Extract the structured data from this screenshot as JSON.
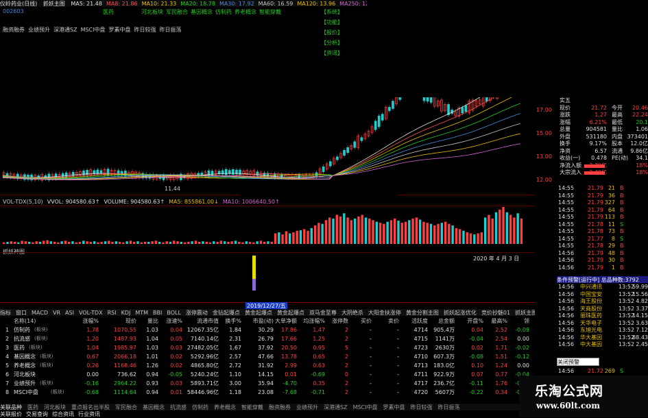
{
  "titlebar": {
    "stock": "仪岭药业(日线)",
    "indicator": "抓妖主图",
    "ma_values": [
      {
        "label": "MA5: 21.48",
        "color": "#e0e0e0"
      },
      {
        "label": "MA8: 21.86",
        "color": "#ff5050"
      },
      {
        "label": "MA10: 21.33",
        "color": "#e8c000"
      },
      {
        "label": "MA20: 18.78",
        "color": "#22cc22"
      },
      {
        "label": "MA30: 17.92",
        "color": "#4a8cdc"
      },
      {
        "label": "MA60: 16.59",
        "color": "#c8c8c8"
      },
      {
        "label": "MA120: 13.96",
        "color": "#e8c000"
      },
      {
        "label": "MA250: 12.77",
        "color": "#cc66cc"
      }
    ],
    "header_tags": [
      "医药",
      "河北板块",
      "军民融合",
      "基因概念",
      "仿制药",
      "养老概念",
      "智能穿戴"
    ]
  },
  "code": "002603",
  "concept_tags": [
    "融资融券",
    "业绩预升",
    "深港通SZ",
    "MSCI中盘",
    "罗素中盘",
    "昨日较强",
    "昨日振荡"
  ],
  "menu_boxes": [
    "【系统】",
    "【功能】",
    "【报价】",
    "【分析】",
    "【资讯】"
  ],
  "volume": {
    "header": [
      "VOL-TDX(5,10)",
      "VVOL: 904580.63↑",
      "VOLUME: 904580.63↑",
      "MA5: 855861.00↓",
      "MA10: 1006640.50↑"
    ],
    "bars": [
      3,
      4,
      5,
      4,
      3,
      6,
      5,
      4,
      3,
      5,
      4,
      6,
      7,
      5,
      4,
      3,
      5,
      6,
      4,
      5,
      3,
      4,
      6,
      5,
      4,
      5,
      3,
      4,
      5,
      6,
      4,
      5,
      4,
      3,
      5,
      6,
      4,
      5,
      3,
      4,
      4,
      5,
      6,
      4,
      3,
      5,
      4,
      6,
      5,
      4,
      3,
      4,
      5,
      6,
      4,
      5,
      4,
      3,
      5,
      4,
      6,
      5,
      4,
      5,
      6,
      4,
      3,
      5,
      4,
      3,
      5,
      6,
      4,
      5,
      4,
      20,
      22,
      18,
      24,
      20,
      22,
      25,
      26,
      28,
      25,
      30,
      35,
      40,
      38,
      45,
      50,
      48,
      55,
      52,
      58,
      50,
      45,
      48,
      52,
      55,
      50,
      48,
      45,
      42,
      40,
      38,
      42,
      45,
      48,
      44,
      40,
      42,
      45,
      48,
      50,
      46,
      42,
      40,
      38,
      35,
      38,
      40,
      42,
      38,
      35,
      30,
      28,
      25,
      22,
      20,
      18,
      20,
      22,
      50,
      55,
      48,
      60,
      65,
      70,
      60,
      55,
      50,
      58,
      48
    ]
  },
  "indicator": {
    "header": "抓妖神图",
    "date_label": "2020 年 4 月 3 日"
  },
  "cursor_date": "2019/12/27/五",
  "tabs": [
    "指标",
    "窗口",
    "MACD",
    "VR",
    "ASI",
    "VOL-TDX",
    "RSI",
    "KDJ",
    "MTM",
    "BBI",
    "BOLL",
    "涨停震动",
    "金钻起爆点",
    "黄金起爆点",
    "黄金起爆点",
    "双马金至尊",
    "大阴绝杀",
    "大阳金扶涨停",
    "黄金分割主图",
    "抓妖起涨优化",
    "竞价抄魅01",
    "抓妖主图",
    "抓妖神图",
    "抓妖启动",
    "更多",
    "设置"
  ],
  "tabs_active": 22,
  "table": {
    "headers": [
      "名称(14)",
      "涨幅%",
      "现价",
      "量比",
      "涨速%",
      "流通市值",
      "换手%",
      "市盈(动)",
      "大单净额",
      "均涨幅%",
      "涨停数",
      "买价",
      "卖价",
      "活跃度",
      "总金额",
      "开盘%",
      "最高%",
      "领"
    ],
    "rows": [
      {
        "no": "1",
        "name": "仿制药",
        "tag": "(板块)",
        "chg": "1.78",
        "price": "1070.55",
        "vr": "1.03",
        "spd": "0.04",
        "cap": "12067.35亿",
        "turn": "1.84",
        "pe": "30.29",
        "big": "17.86",
        "avg": "1.47",
        "zt": "2",
        "buy": "-",
        "sell": "-",
        "act": "4714",
        "amt": "905.4万",
        "open": "0.04",
        "high": "2.52",
        "lead": "-0.09",
        "chgc": "red"
      },
      {
        "no": "2",
        "name": "抗流感",
        "tag": "(板块)",
        "chg": "1.20",
        "price": "1487.93",
        "vr": "1.04",
        "spd": "0.05",
        "cap": "7140.14亿",
        "turn": "2.31",
        "pe": "26.79",
        "big": "17.66",
        "avg": "1.25",
        "zt": "2",
        "buy": "-",
        "sell": "-",
        "act": "4715",
        "amt": "1141万",
        "open": "-0.04",
        "high": "2.54",
        "lead": "0.00",
        "chgc": "red"
      },
      {
        "no": "3",
        "name": "医药",
        "tag": "(板块)",
        "chg": "1.04",
        "price": "1985.97",
        "vr": "1.03",
        "spd": "0.03",
        "cap": "27482.05亿",
        "turn": "1.67",
        "pe": "37.92",
        "big": "20.50",
        "avg": "0.95",
        "zt": "5",
        "buy": "-",
        "sell": "-",
        "act": "4723",
        "amt": "2630万",
        "open": "0.02",
        "high": "1.71",
        "lead": "-0.02",
        "chgc": "red"
      },
      {
        "no": "4",
        "name": "基因概念",
        "tag": "(板块)",
        "chg": "0.67",
        "price": "2066.18",
        "vr": "1.01",
        "spd": "0.02",
        "cap": "5292.96亿",
        "turn": "2.57",
        "pe": "47.66",
        "big": "13.78",
        "avg": "0.65",
        "zt": "2",
        "buy": "-",
        "sell": "-",
        "act": "4710",
        "amt": "607.3万",
        "open": "-0.08",
        "high": "1.51",
        "lead": "-0.12",
        "chgc": "red"
      },
      {
        "no": "5",
        "name": "养老概念",
        "tag": "(板块)",
        "chg": "0.26",
        "price": "1168.46",
        "vr": "1.26",
        "spd": "0.02",
        "cap": "4865.80亿",
        "turn": "2.72",
        "pe": "31.92",
        "big": "2.99",
        "avg": "0.63",
        "zt": "2",
        "buy": "-",
        "sell": "-",
        "act": "4713",
        "amt": "183.0亿",
        "open": "0.10",
        "high": "1.24",
        "lead": "0.00",
        "chgc": "red"
      },
      {
        "no": "6",
        "name": "河北板块",
        "tag": "",
        "chg": "0.00",
        "price": "736.62",
        "vr": "0.94",
        "spd": "-0.05",
        "cap": "5240.24亿",
        "turn": "1.10",
        "pe": "14.15",
        "big": "0.01",
        "avg": "-0.69",
        "zt": "0",
        "buy": "-",
        "sell": "-",
        "act": "4711",
        "amt": "922.9万",
        "open": "0.07",
        "high": "0.77",
        "lead": "-0.04",
        "chgc": "white"
      },
      {
        "no": "7",
        "name": "业绩预升",
        "tag": "(板块)",
        "chg": "-0.16",
        "price": "2964.22",
        "vr": "0.93",
        "spd": "0.03",
        "cap": "5893.71亿",
        "turn": "3.00",
        "pe": "35.94",
        "big": "-4.70",
        "avg": "0.35",
        "zt": "2",
        "buy": "-",
        "sell": "-",
        "act": "4717",
        "amt": "236.7亿",
        "open": "-0.11",
        "high": "1.76",
        "lead": "-0.04",
        "chgc": "green"
      },
      {
        "no": "8",
        "name": "MSCI中盘",
        "tag": "(板块)",
        "chg": "-0.68",
        "price": "1114.64",
        "vr": "0.94",
        "spd": "0.01",
        "cap": "58446.96亿",
        "turn": "1.18",
        "pe": "23.08",
        "big": "-7.68",
        "avg": "-0.71",
        "zt": "2",
        "buy": "-",
        "sell": "-",
        "act": "4720",
        "amt": "5607万",
        "open": "-0.22",
        "high": "0.34",
        "lead": "-0.04",
        "chgc": "green"
      }
    ]
  },
  "bottom_tabs": [
    "关联品种",
    "医药",
    "河北板块",
    "重点报名出半股",
    "军民融合",
    "基因概念",
    "抗流感",
    "仿制药",
    "养老概念",
    "智能穿戴",
    "融资融券",
    "业绩预升",
    "深港通SZ",
    "MSCI中盘",
    "罗素中盘",
    "昨日较强",
    "昨日振荡"
  ],
  "bottom_links": [
    "关联报价",
    "交易查询",
    "综合资讯",
    "行业资讯"
  ],
  "quote": {
    "rows": [
      {
        "l": "实五",
        "v": "",
        "l2": "",
        "v2": ""
      },
      {
        "l": "现价",
        "v": "21.72",
        "l2": "今开",
        "v2": "20.46"
      },
      {
        "l": "涨跌",
        "v": "1.27",
        "l2": "最高",
        "v2": "22.24"
      },
      {
        "l": "涨幅",
        "v": "6.21%",
        "l2": "最低",
        "v2": "20.1"
      },
      {
        "l": "总量",
        "v": "904581",
        "l2": "量比",
        "v2": "1.06"
      },
      {
        "l": "外盘",
        "v": "531180",
        "l2": "内盘",
        "v2": "373401"
      },
      {
        "l": "换手",
        "v": "9.17%",
        "l2": "股本",
        "v2": "12.0亿"
      },
      {
        "l": "净资",
        "v": "6.57",
        "l2": "流通",
        "v2": "9.86亿"
      },
      {
        "l": "收益(一)",
        "v": "0.478",
        "l2": "PE(动)",
        "v2": "34.1"
      },
      {
        "l": "净流入额",
        "v": "3.39亿",
        "l2": "",
        "v2": "18%"
      },
      {
        "l": "大宗流入",
        "v": "3.40亿",
        "l2": "",
        "v2": "18%"
      }
    ],
    "price_axis": [
      "17.00",
      "15.00",
      "13.00",
      "12.00"
    ]
  },
  "ticks": [
    {
      "t": "14:55",
      "p": "21.79",
      "v": "21",
      "s": "B"
    },
    {
      "t": "14:55",
      "p": "21.79",
      "v": "36",
      "s": "B"
    },
    {
      "t": "14:55",
      "p": "21.79",
      "v": "327",
      "s": "B"
    },
    {
      "t": "14:55",
      "p": "21.79",
      "v": "64",
      "s": "B"
    },
    {
      "t": "14:55",
      "p": "21.79",
      "v": "113",
      "s": "B"
    },
    {
      "t": "14:55",
      "p": "21.78",
      "v": "11",
      "s": "S"
    },
    {
      "t": "14:55",
      "p": "21.78",
      "v": "73",
      "s": "B"
    },
    {
      "t": "14:55",
      "p": "21.77",
      "v": "8",
      "s": "S"
    },
    {
      "t": "14:55",
      "p": "21.78",
      "v": "29",
      "s": "B"
    },
    {
      "t": "14:56",
      "p": "21.79",
      "v": "48",
      "s": "B"
    },
    {
      "t": "14:56",
      "p": "21.79",
      "v": "30",
      "s": "B"
    },
    {
      "t": "14:56",
      "p": "21.79",
      "v": "1",
      "s": "B"
    }
  ],
  "alert_title": "条件预警[运行中] 总品种数:3792",
  "alerts": [
    {
      "t": "14:56",
      "n": "中兴通讯",
      "tm": "13:52",
      "v": "59.99"
    },
    {
      "t": "14:56",
      "n": "中国宝安",
      "tm": "13:52",
      "v": "15.56"
    },
    {
      "t": "14:56",
      "n": "海王股份",
      "tm": "13:52",
      "v": "4.82"
    },
    {
      "t": "14:56",
      "n": "天商股份",
      "tm": "13:52",
      "v": "3.37"
    },
    {
      "t": "14:56",
      "n": "丽珠医药",
      "tm": "13:52",
      "v": "14.15"
    },
    {
      "t": "14:56",
      "n": "天华电子",
      "tm": "13:52",
      "v": "3.63"
    },
    {
      "t": "14:56",
      "n": "东旭光电",
      "tm": "13:52",
      "v": "7.12"
    },
    {
      "t": "14:56",
      "n": "华大基因",
      "tm": "13:52",
      "v": "88.43"
    },
    {
      "t": "14:56",
      "n": "中大基因",
      "tm": "13:52",
      "v": "2.45"
    }
  ],
  "popup_label": "关闭预警",
  "bottom_quote": {
    "t": "14:56",
    "p": "21.72",
    "v": "269",
    "s": "S"
  },
  "watermark": {
    "title": "乐淘公式网",
    "url": "www.60lt.com"
  },
  "chart_labels": {
    "left_low": "11.44"
  },
  "colors": {
    "up": "#ff4040",
    "down": "#22cccc",
    "accent": "#1a3cc8",
    "bg": "#000000"
  }
}
